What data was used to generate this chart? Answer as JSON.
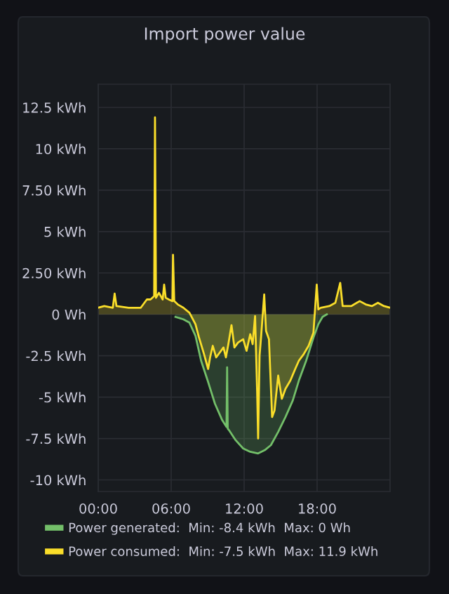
{
  "chart_data": {
    "type": "area",
    "title": "Import power value",
    "xlim": [
      0,
      24
    ],
    "xticks": [
      {
        "value": 0,
        "label": "00:00"
      },
      {
        "value": 6,
        "label": "06:00"
      },
      {
        "value": 12,
        "label": "12:00"
      },
      {
        "value": 18,
        "label": "18:00"
      }
    ],
    "ylim": [
      -10.7,
      13.9
    ],
    "yticks": [
      {
        "value": -10,
        "label": "-10 kWh"
      },
      {
        "value": -7.5,
        "label": "-7.5 kWh"
      },
      {
        "value": -5,
        "label": "-5 kWh"
      },
      {
        "value": -2.5,
        "label": "-2.5 kWh"
      },
      {
        "value": 0,
        "label": "0 Wh"
      },
      {
        "value": 2.5,
        "label": "2.50 kWh"
      },
      {
        "value": 5,
        "label": "5 kWh"
      },
      {
        "value": 7.5,
        "label": "7.50 kWh"
      },
      {
        "value": 10,
        "label": "10 kWh"
      },
      {
        "value": 12.5,
        "label": "12.5 kWh"
      }
    ],
    "grid": true,
    "legend": "bottom",
    "series": [
      {
        "name": "Power generated:  Min: -8.4 kWh  Max: 0 Wh",
        "color": "#73bf69",
        "x": [
          6.35,
          7.0,
          7.5,
          8.0,
          8.46,
          9.0,
          9.6,
          10.2,
          10.55,
          10.6,
          10.65,
          10.76,
          11.3,
          11.92,
          12.5,
          13.15,
          13.7,
          14.2,
          14.8,
          15.4,
          16.0,
          16.5,
          17.1,
          17.7,
          18.1,
          18.45,
          18.8
        ],
        "values": [
          -0.15,
          -0.3,
          -0.5,
          -1.3,
          -2.8,
          -4.0,
          -5.4,
          -6.4,
          -6.8,
          -3.2,
          -6.9,
          -7.0,
          -7.6,
          -8.1,
          -8.3,
          -8.4,
          -8.2,
          -7.9,
          -7.1,
          -6.2,
          -5.2,
          -4.0,
          -2.8,
          -1.4,
          -0.6,
          -0.15,
          0
        ]
      },
      {
        "name": "Power consumed:  Min: -7.5 kWh  Max: 11.9 kWh",
        "color": "#fade2a",
        "x": [
          0,
          0.5,
          1.2,
          1.35,
          1.5,
          2.5,
          3.5,
          4.0,
          4.3,
          4.6,
          4.67,
          4.75,
          5.0,
          5.3,
          5.42,
          5.55,
          5.8,
          6.1,
          6.15,
          6.25,
          6.54,
          7.0,
          7.5,
          8.0,
          8.27,
          8.7,
          9.04,
          9.2,
          9.42,
          9.7,
          10.0,
          10.3,
          10.5,
          10.7,
          10.96,
          11.2,
          11.5,
          11.92,
          12.2,
          12.5,
          12.7,
          12.9,
          13.07,
          13.15,
          13.27,
          13.4,
          13.65,
          13.8,
          14.04,
          14.3,
          14.5,
          14.8,
          15.1,
          15.4,
          15.8,
          16.2,
          16.5,
          16.9,
          17.3,
          17.7,
          17.97,
          18.1,
          18.3,
          19,
          19.5,
          19.9,
          20.1,
          20.8,
          21.5,
          22,
          22.5,
          23,
          23.5,
          24
        ],
        "values": [
          0.4,
          0.5,
          0.4,
          1.25,
          0.5,
          0.4,
          0.4,
          0.9,
          0.9,
          1.1,
          11.9,
          1.0,
          1.3,
          0.9,
          1.8,
          1.0,
          0.9,
          0.8,
          3.6,
          0.8,
          0.6,
          0.4,
          0.1,
          -0.6,
          -1.35,
          -2.4,
          -3.3,
          -2.6,
          -1.9,
          -2.6,
          -2.3,
          -2.0,
          -2.6,
          -1.8,
          -0.65,
          -2.0,
          -1.7,
          -1.5,
          -2.2,
          -1.2,
          -1.8,
          -0.1,
          -4.7,
          -7.5,
          -2.5,
          -1.3,
          1.2,
          -1.0,
          -1.5,
          -6.2,
          -5.8,
          -3.7,
          -5.1,
          -4.5,
          -4.0,
          -3.3,
          -2.8,
          -2.4,
          -1.9,
          -1.1,
          1.8,
          0.3,
          0.4,
          0.5,
          0.7,
          1.9,
          0.5,
          0.5,
          0.8,
          0.6,
          0.5,
          0.7,
          0.5,
          0.4
        ]
      }
    ]
  }
}
